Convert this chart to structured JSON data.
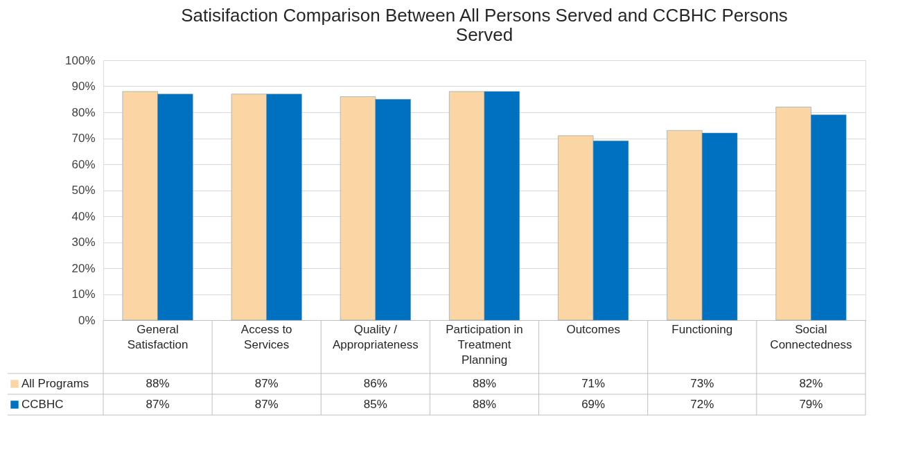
{
  "chart_data": {
    "type": "bar",
    "title": "Satisifaction Comparison Between All Persons Served and CCBHC Persons Served",
    "categories": [
      "General Satisfaction",
      "Access to Services",
      "Quality / Appropriateness",
      "Participation in Treatment Planning",
      "Outcomes",
      "Functioning",
      "Social Connectedness"
    ],
    "series": [
      {
        "name": "All Programs",
        "color": "#fcd5a4",
        "values": [
          88,
          87,
          86,
          88,
          71,
          73,
          82
        ],
        "value_labels": [
          "88%",
          "87%",
          "86%",
          "88%",
          "71%",
          "73%",
          "82%"
        ]
      },
      {
        "name": "CCBHC",
        "color": "#0070c0",
        "values": [
          87,
          87,
          85,
          88,
          69,
          72,
          79
        ],
        "value_labels": [
          "87%",
          "87%",
          "85%",
          "88%",
          "69%",
          "72%",
          "79%"
        ]
      }
    ],
    "ylim": [
      0,
      100
    ],
    "yticks": [
      {
        "value": 0,
        "label": "0%"
      },
      {
        "value": 10,
        "label": "10%"
      },
      {
        "value": 20,
        "label": "20%"
      },
      {
        "value": 30,
        "label": "30%"
      },
      {
        "value": 40,
        "label": "40%"
      },
      {
        "value": 50,
        "label": "50%"
      },
      {
        "value": 60,
        "label": "60%"
      },
      {
        "value": 70,
        "label": "70%"
      },
      {
        "value": 80,
        "label": "80%"
      },
      {
        "value": 90,
        "label": "90%"
      },
      {
        "value": 100,
        "label": "100%"
      }
    ],
    "grid": "y",
    "legend": "bottom"
  }
}
